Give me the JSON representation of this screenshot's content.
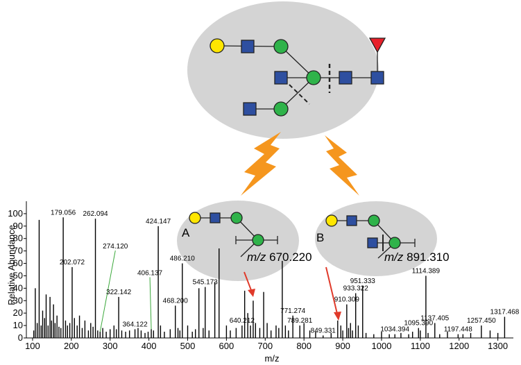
{
  "chart_data": {
    "type": "stem",
    "x_label": "m/z",
    "y_label": "Relative Abundance",
    "xlim": [
      84,
      1340
    ],
    "ylim": [
      0,
      110
    ],
    "xticks": [
      100,
      200,
      300,
      400,
      500,
      600,
      700,
      800,
      900,
      1000,
      1100,
      1200,
      1300
    ],
    "yticks": [
      0,
      10,
      20,
      30,
      40,
      50,
      60,
      70,
      80,
      90,
      100
    ],
    "series": [
      {
        "color": "#000000",
        "x": [
          179.056,
          202.072,
          262.094,
          274.12,
          322.142,
          364.122,
          406.137,
          424.147,
          468.2,
          486.21,
          545.173,
          640.212,
          771.274,
          789.281,
          849.331,
          910.309,
          933.322,
          951.333,
          1034.394,
          1095.39,
          1114.389,
          1137.405,
          1197.448,
          1257.45,
          1317.468
        ],
        "values": [
          97,
          57,
          96,
          5,
          33,
          7,
          7,
          90,
          26,
          60,
          41,
          10,
          18,
          10,
          2,
          27,
          36,
          42,
          3,
          8,
          50,
          12,
          3,
          10,
          17
        ],
        "x_labels": [
          "179.056",
          "202.072",
          "262.094",
          "274.120",
          "322.142",
          "364.122",
          "406.137",
          "424.147",
          "468.200",
          "486.210",
          "545.173",
          "640.212",
          "771.274",
          "789.281",
          "849.331",
          "910.309",
          "933.322",
          "951.333",
          "1034.394",
          "1095.390",
          "1114.389",
          "1137.405",
          "1197.448",
          "1257.450",
          "1317.468"
        ]
      },
      {
        "color": "#000000",
        "x": [
          103,
          107,
          112,
          117,
          122,
          126,
          131,
          135,
          140,
          145,
          149,
          154,
          158,
          163,
          168,
          173,
          185,
          190,
          196,
          208,
          215,
          221,
          228,
          235,
          244,
          250,
          256,
          268,
          281,
          290,
          300,
          310,
          316,
          330,
          340,
          350,
          372,
          380,
          390,
          398,
          412,
          430,
          440,
          455,
          475,
          480,
          500,
          512,
          520,
          529,
          540,
          555,
          570,
          581,
          600,
          610,
          625,
          647,
          655,
          662,
          669,
          675,
          686,
          696,
          705,
          715,
          728,
          735,
          744,
          752,
          760,
          800,
          815,
          830,
          870,
          887,
          895,
          900,
          915,
          920,
          925,
          940,
          960,
          980,
          1000,
          1020,
          1050,
          1070,
          1080,
          1100,
          1120,
          1150,
          1170,
          1210,
          1230,
          1280,
          1300
        ],
        "values": [
          6,
          40,
          12,
          95,
          10,
          22,
          16,
          35,
          10,
          33,
          14,
          27,
          12,
          18,
          9,
          8,
          14,
          10,
          12,
          16,
          10,
          18,
          8,
          14,
          6,
          12,
          9,
          6,
          8,
          5,
          7,
          10,
          7,
          6,
          5,
          6,
          8,
          6,
          4,
          5,
          6,
          10,
          5,
          7,
          8,
          6,
          10,
          5,
          7,
          40,
          8,
          6,
          45,
          72,
          10,
          6,
          8,
          38,
          20,
          10,
          30,
          12,
          8,
          37,
          12,
          6,
          10,
          8,
          62,
          10,
          6,
          12,
          6,
          5,
          4,
          14,
          10,
          6,
          8,
          12,
          6,
          10,
          4,
          3,
          5,
          3,
          4,
          3,
          5,
          6,
          4,
          3,
          5,
          3,
          4,
          6,
          4
        ]
      }
    ],
    "annotations": [
      {
        "letter": "A",
        "prefix": "m/z",
        "value": "670.220"
      },
      {
        "letter": "B",
        "prefix": "m/z",
        "value": "891.310"
      }
    ]
  }
}
